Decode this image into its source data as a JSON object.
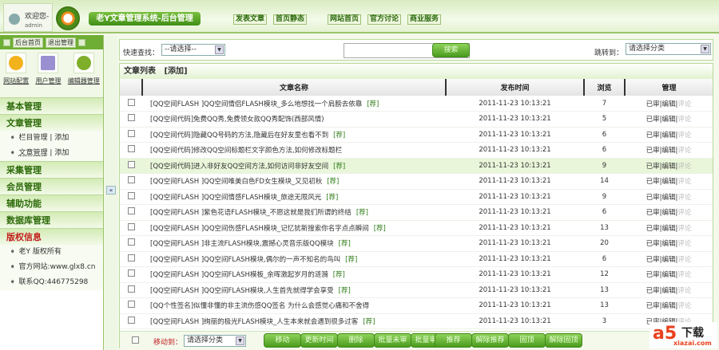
{
  "header": {
    "welcome": "欢迎您-",
    "user": "admin",
    "title": "老Y文章管理系统-后台管理",
    "links": [
      "发表文章",
      "首页静态",
      "网站首页",
      "官方讨论",
      "商业服务"
    ]
  },
  "sidebar": {
    "top_buttons": [
      "后台首页",
      "退出管理"
    ],
    "tools": [
      "网站配置",
      "用户管理",
      "编辑器管理"
    ],
    "sections": [
      {
        "title": "基本管理",
        "items": []
      },
      {
        "title": "文章管理",
        "items": [
          [
            "栏目管理",
            "添加"
          ],
          [
            "文章管理",
            "添加"
          ]
        ]
      },
      {
        "title": "采集管理",
        "items": []
      },
      {
        "title": "会员管理",
        "items": []
      },
      {
        "title": "辅助功能",
        "items": []
      },
      {
        "title": "数据库管理",
        "items": []
      }
    ],
    "copyright": {
      "title": "版权信息",
      "lines": [
        "老Y 版权所有",
        "官方网站:www.glx8.cn",
        "联系QQ:446775298"
      ]
    },
    "collapse": "«"
  },
  "search": {
    "label": "快速查找：",
    "select": "--请选择--",
    "button": "搜索",
    "jump_label": "跳转到：",
    "jump_select": "请选择分类",
    "query": ""
  },
  "list": {
    "title": "文章列表",
    "add": "[添加]",
    "columns": [
      "",
      "文章名称",
      "发布时间",
      "浏览",
      "管理"
    ],
    "rows": [
      {
        "title": "[QQ空间FLASH ]QQ空间情侣FLASH模块_多么地想找一个肩膀去依靠",
        "rec": true,
        "time": "2011-11-23 10:13:21",
        "views": 7
      },
      {
        "title": "[QQ空间代码]免费QQ秀,免费领女款QQ秀配饰(西部风情)",
        "rec": false,
        "time": "2011-11-23 10:13:21",
        "views": 5
      },
      {
        "title": "[QQ空间代码]隐藏QQ号码的方法,隐藏后在好友里也看不到",
        "rec": true,
        "time": "2011-11-23 10:13:21",
        "views": 6
      },
      {
        "title": "[QQ空间代码]修改QQ空间标题栏文字颜色方法,如何修改标题栏",
        "rec": false,
        "time": "2011-11-23 10:13:21",
        "views": 6
      },
      {
        "title": "[QQ空间代码]进入非好友QQ空间方法,如何访问非好友空间",
        "rec": true,
        "time": "2011-11-23 10:13:21",
        "views": 9
      },
      {
        "title": "[QQ空间FLASH ]QQ空间唯美白色FD女生模块_又见初秋",
        "rec": true,
        "time": "2011-11-23 10:13:21",
        "views": 14
      },
      {
        "title": "[QQ空间FLASH ]QQ空间情感FLASH模块_旅途无限风光",
        "rec": true,
        "time": "2011-11-23 10:13:21",
        "views": 9
      },
      {
        "title": "[QQ空间FLASH ]紫色花语FLASH模块_不愿这就是我们所谓的终结",
        "rec": true,
        "time": "2011-11-23 10:13:21",
        "views": 6
      },
      {
        "title": "[QQ空间FLASH ]QQ空间伤感FLASH模块_记忆犹新搜索你名字点点瞬间",
        "rec": true,
        "time": "2011-11-23 10:13:21",
        "views": 13
      },
      {
        "title": "[QQ空间FLASH ]非主流FLASH模块,震撼心灵音乐版QQ模块",
        "rec": true,
        "time": "2011-11-23 10:13:21",
        "views": 20
      },
      {
        "title": "[QQ空间FLASH ]QQ空间FLASH模块,偶尔的一声不知名的鸟叫",
        "rec": true,
        "time": "2011-11-23 10:13:21",
        "views": 6
      },
      {
        "title": "[QQ空间FLASH ]QQ空间FLASH模板_余晖激起岁月的涟漪",
        "rec": true,
        "time": "2011-11-23 10:13:21",
        "views": 12
      },
      {
        "title": "[QQ空间FLASH ]QQ空间FLASH模块,人生首先就得学会享受",
        "rec": true,
        "time": "2011-11-23 10:13:21",
        "views": 13
      },
      {
        "title": "[QQ个性签名]似懂非懂的非主流伤感QQ签名 为什么会感觉心痛和不舍得",
        "rec": false,
        "time": "2011-11-23 10:13:21",
        "views": 13
      },
      {
        "title": "[QQ空间FLASH ]绚丽的极光FLASH模块_人生本来就会遇到很多过客",
        "rec": true,
        "time": "2011-11-23 10:13:21",
        "views": 3
      }
    ],
    "rec_label": "[荐]",
    "actions": [
      "已审",
      "编辑",
      "评论"
    ],
    "highlighted_row": 5
  },
  "footer": {
    "move_label": "移动到：",
    "move_select": "请选择分类",
    "buttons": [
      "移动",
      "更新时间",
      "删除",
      "批量未审",
      "批量审核",
      "推荐",
      "解除推荐",
      "固顶",
      "解除固顶"
    ]
  },
  "watermark": {
    "logo": "a5",
    "text": "下载",
    "domain": "xiazai.com"
  }
}
